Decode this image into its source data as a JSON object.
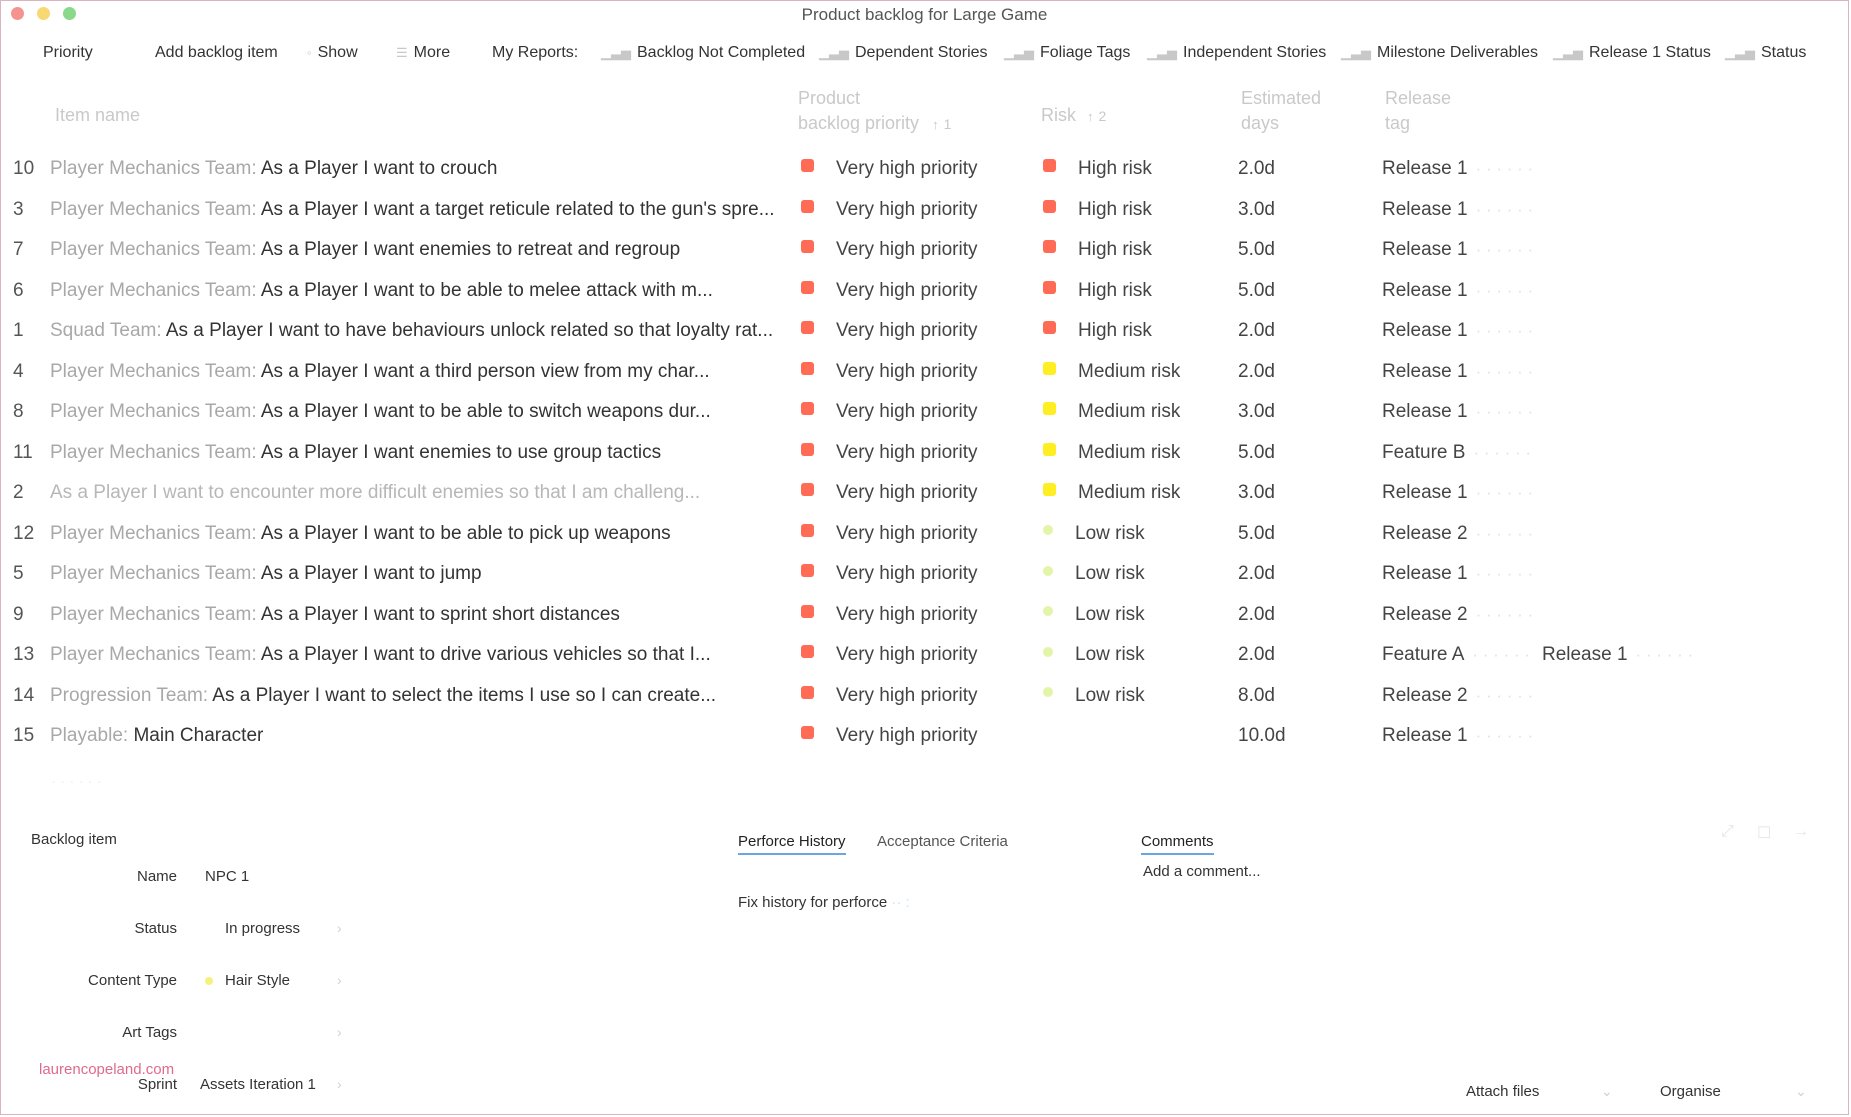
{
  "window": {
    "title": "Product backlog for Large Game"
  },
  "colors": {
    "very_high": "#ff6b55",
    "high_risk": "#ff6b55",
    "medium_risk": "#ffee22",
    "low_risk": "#e2f5a8",
    "accent": "#6aa6e0"
  },
  "toolbar": {
    "priority": "Priority",
    "add_item": "Add backlog item",
    "show": "Show",
    "more": "More",
    "my_reports": "My Reports:",
    "reports": [
      "Backlog Not Completed",
      "Dependent Stories",
      "Foliage Tags",
      "Independent Stories",
      "Milestone Deliverables",
      "Release 1 Status",
      "Status"
    ]
  },
  "columns": {
    "item_name": "Item name",
    "priority_l1": "Product",
    "priority_l2": "backlog priority",
    "priority_sort": "1",
    "risk": "Risk",
    "risk_sort": "2",
    "days_l1": "Estimated",
    "days_l2": "days",
    "tag_l1": "Release",
    "tag_l2": "tag"
  },
  "rows": [
    {
      "num": "10",
      "team": "Player Mechanics Team:",
      "text": " As a Player I want to crouch",
      "priority": "Very high priority",
      "risk": "High risk",
      "risk_level": "high",
      "days": "2.0d",
      "tags": [
        "Release 1"
      ]
    },
    {
      "num": "3",
      "team": "Player Mechanics Team:",
      "text": " As a Player I want a target reticule related to the gun's spre...",
      "priority": "Very high priority",
      "risk": "High risk",
      "risk_level": "high",
      "days": "3.0d",
      "tags": [
        "Release 1"
      ]
    },
    {
      "num": "7",
      "team": "Player Mechanics Team:",
      "text": " As a Player I want enemies to retreat and regroup",
      "priority": "Very high priority",
      "risk": "High risk",
      "risk_level": "high",
      "days": "5.0d",
      "tags": [
        "Release 1"
      ]
    },
    {
      "num": "6",
      "team": "Player Mechanics Team:",
      "text": " As a Player I want to be able to melee attack with m...",
      "priority": "Very high priority",
      "risk": "High risk",
      "risk_level": "high",
      "days": "5.0d",
      "tags": [
        "Release 1"
      ]
    },
    {
      "num": "1",
      "team": "Squad Team:",
      "text": " As a Player I want to have behaviours unlock related so that loyalty rat...",
      "priority": "Very high priority",
      "risk": "High risk",
      "risk_level": "high",
      "days": "2.0d",
      "tags": [
        "Release 1"
      ]
    },
    {
      "num": "4",
      "team": "Player Mechanics Team:",
      "text": " As a Player I want a third person view from my char...",
      "priority": "Very high priority",
      "risk": "Medium risk",
      "risk_level": "medium",
      "days": "2.0d",
      "tags": [
        "Release 1"
      ]
    },
    {
      "num": "8",
      "team": "Player Mechanics Team:",
      "text": " As a Player I want to be able to switch weapons dur...",
      "priority": "Very high priority",
      "risk": "Medium risk",
      "risk_level": "medium",
      "days": "3.0d",
      "tags": [
        "Release 1"
      ]
    },
    {
      "num": "11",
      "team": "Player Mechanics Team:",
      "text": " As a Player I want enemies to use group tactics",
      "priority": "Very high priority",
      "risk": "Medium risk",
      "risk_level": "medium",
      "days": "5.0d",
      "tags": [
        "Feature B"
      ]
    },
    {
      "num": "2",
      "team": "",
      "text": "As a Player I want to encounter more difficult enemies so that I am challeng...",
      "priority": "Very high priority",
      "risk": "Medium risk",
      "risk_level": "medium",
      "days": "3.0d",
      "tags": [
        "Release 1"
      ],
      "faded": true
    },
    {
      "num": "12",
      "team": "Player Mechanics Team:",
      "text": " As a Player I want to be able to pick up weapons",
      "priority": "Very high priority",
      "risk": "Low risk",
      "risk_level": "low",
      "days": "5.0d",
      "tags": [
        "Release 2"
      ]
    },
    {
      "num": "5",
      "team": "Player Mechanics Team:",
      "text": " As a Player I want to jump",
      "priority": "Very high priority",
      "risk": "Low risk",
      "risk_level": "low",
      "days": "2.0d",
      "tags": [
        "Release 1"
      ]
    },
    {
      "num": "9",
      "team": "Player Mechanics Team:",
      "text": " As a Player I want to sprint short distances",
      "priority": "Very high priority",
      "risk": "Low risk",
      "risk_level": "low",
      "days": "2.0d",
      "tags": [
        "Release 2"
      ]
    },
    {
      "num": "13",
      "team": "Player Mechanics Team:",
      "text": " As a Player I want to drive various vehicles so that I...",
      "priority": "Very high priority",
      "risk": "Low risk",
      "risk_level": "low",
      "days": "2.0d",
      "tags": [
        "Feature A",
        "Release 1"
      ]
    },
    {
      "num": "14",
      "team": "Progression Team:",
      "text": " As a Player I want to select the items I use so I can create...",
      "priority": "Very high priority",
      "risk": "Low risk",
      "risk_level": "low",
      "days": "8.0d",
      "tags": [
        "Release 2"
      ]
    },
    {
      "num": "15",
      "team": "Playable:",
      "text": " Main Character",
      "priority": "Very high priority",
      "risk": "",
      "risk_level": "",
      "days": "10.0d",
      "tags": [
        "Release 1"
      ]
    }
  ],
  "details": {
    "section_title": "Backlog item",
    "fields": [
      {
        "label": "Name",
        "value": "NPC 1"
      },
      {
        "label": "Status",
        "value": "In progress"
      },
      {
        "label": "Content Type",
        "value": "Hair Style"
      },
      {
        "label": "Art Tags",
        "value": ""
      },
      {
        "label": "Sprint",
        "value": "Assets Iteration 1"
      }
    ]
  },
  "tabs": {
    "perforce": "Perforce History",
    "acceptance": "Acceptance Criteria",
    "comments": "Comments"
  },
  "perforce_text": "Fix history for perforce",
  "comment_placeholder": "Add a comment...",
  "footer": {
    "attach": "Attach files",
    "organise": "Organise"
  },
  "watermark": "laurencopeland.com"
}
